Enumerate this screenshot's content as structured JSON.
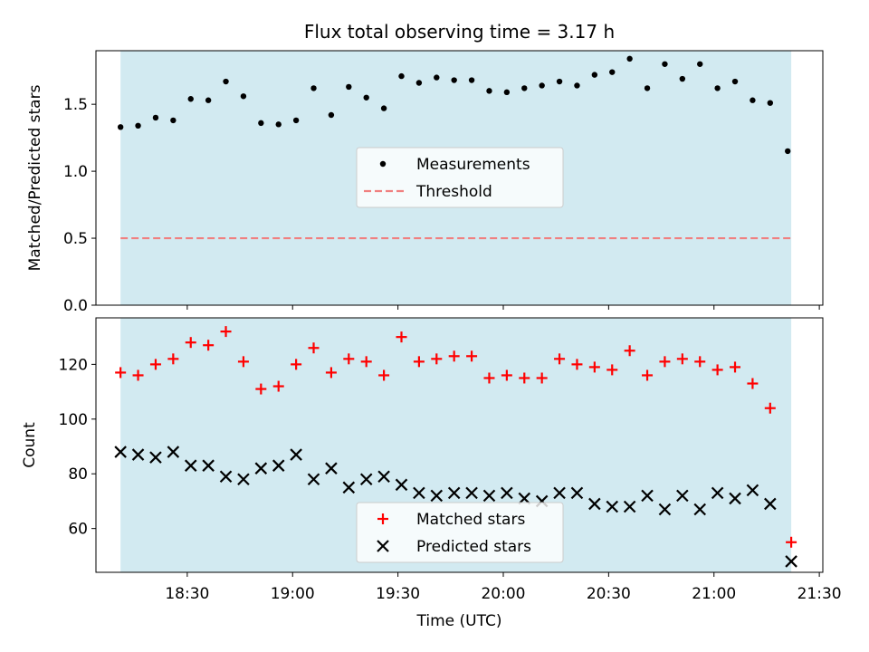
{
  "chart_data": [
    {
      "type": "scatter",
      "title": "Flux total observing time = 3.17 h",
      "xlabel": "",
      "ylabel": "Matched/Predicted stars",
      "ylim": [
        0,
        1.9
      ],
      "yticks": [
        "0.0",
        "0.5",
        "1.0",
        "1.5"
      ],
      "ytick_values": [
        0,
        0.5,
        1.0,
        1.5
      ],
      "shaded_band": {
        "x_start": "18:11",
        "x_end": "21:22",
        "color": "#add8e6"
      },
      "legend": {
        "placement": "center",
        "entries": [
          "Measurements",
          "Threshold"
        ]
      },
      "threshold": {
        "name": "Threshold",
        "value": 0.5,
        "x_start": "18:11",
        "x_end": "21:22",
        "color": "#f08080"
      },
      "series": [
        {
          "name": "Measurements",
          "color": "#000000",
          "x": [
            "18:11",
            "18:16",
            "18:21",
            "18:26",
            "18:31",
            "18:36",
            "18:41",
            "18:46",
            "18:51",
            "18:56",
            "19:01",
            "19:06",
            "19:11",
            "19:16",
            "19:21",
            "19:26",
            "19:31",
            "19:36",
            "19:41",
            "19:46",
            "19:51",
            "19:56",
            "20:01",
            "20:06",
            "20:11",
            "20:16",
            "20:21",
            "20:26",
            "20:31",
            "20:36",
            "20:41",
            "20:46",
            "20:51",
            "20:56",
            "21:01",
            "21:06",
            "21:11",
            "21:16",
            "21:21"
          ],
          "y": [
            1.33,
            1.34,
            1.4,
            1.38,
            1.54,
            1.53,
            1.67,
            1.56,
            1.36,
            1.35,
            1.38,
            1.62,
            1.42,
            1.63,
            1.55,
            1.47,
            1.71,
            1.66,
            1.7,
            1.68,
            1.68,
            1.6,
            1.59,
            1.62,
            1.64,
            1.67,
            1.64,
            1.72,
            1.74,
            1.84,
            1.62,
            1.8,
            1.69,
            1.8,
            1.62,
            1.67,
            1.53,
            1.51,
            1.15
          ]
        }
      ]
    },
    {
      "type": "scatter",
      "title": "",
      "xlabel": "Time (UTC)",
      "ylabel": "Count",
      "ylim": [
        44,
        137
      ],
      "yticks": [
        "60",
        "80",
        "100",
        "120"
      ],
      "ytick_values": [
        60,
        80,
        100,
        120
      ],
      "xlim": [
        "18:04",
        "21:31"
      ],
      "xticks": [
        "18:30",
        "19:00",
        "19:30",
        "20:00",
        "20:30",
        "21:00",
        "21:30"
      ],
      "shaded_band": {
        "x_start": "18:11",
        "x_end": "21:22",
        "color": "#add8e6"
      },
      "legend": {
        "placement": "lower center",
        "entries": [
          "Matched stars",
          "Predicted stars"
        ]
      },
      "series": [
        {
          "name": "Matched stars",
          "marker": "+",
          "color": "#ff0000",
          "x": [
            "18:11",
            "18:16",
            "18:21",
            "18:26",
            "18:31",
            "18:36",
            "18:41",
            "18:46",
            "18:51",
            "18:56",
            "19:01",
            "19:06",
            "19:11",
            "19:16",
            "19:21",
            "19:26",
            "19:31",
            "19:36",
            "19:41",
            "19:46",
            "19:51",
            "19:56",
            "20:01",
            "20:06",
            "20:11",
            "20:16",
            "20:21",
            "20:26",
            "20:31",
            "20:36",
            "20:41",
            "20:46",
            "20:51",
            "20:56",
            "21:01",
            "21:06",
            "21:11",
            "21:16",
            "21:22"
          ],
          "y": [
            117,
            116,
            120,
            122,
            128,
            127,
            132,
            121,
            111,
            112,
            120,
            126,
            117,
            122,
            121,
            116,
            130,
            121,
            122,
            123,
            123,
            115,
            116,
            115,
            115,
            122,
            120,
            119,
            118,
            125,
            116,
            121,
            122,
            121,
            118,
            119,
            113,
            104,
            55
          ]
        },
        {
          "name": "Predicted stars",
          "marker": "x",
          "color": "#000000",
          "x": [
            "18:11",
            "18:16",
            "18:21",
            "18:26",
            "18:31",
            "18:36",
            "18:41",
            "18:46",
            "18:51",
            "18:56",
            "19:01",
            "19:06",
            "19:11",
            "19:16",
            "19:21",
            "19:26",
            "19:31",
            "19:36",
            "19:41",
            "19:46",
            "19:51",
            "19:56",
            "20:01",
            "20:06",
            "20:11",
            "20:16",
            "20:21",
            "20:26",
            "20:31",
            "20:36",
            "20:41",
            "20:46",
            "20:51",
            "20:56",
            "21:01",
            "21:06",
            "21:11",
            "21:16",
            "21:22"
          ],
          "y": [
            88,
            87,
            86,
            88,
            83,
            83,
            79,
            78,
            82,
            83,
            87,
            78,
            82,
            75,
            78,
            79,
            76,
            73,
            72,
            73,
            73,
            72,
            73,
            71,
            70,
            73,
            73,
            69,
            68,
            68,
            72,
            67,
            72,
            67,
            73,
            71,
            74,
            69,
            48
          ]
        }
      ]
    }
  ]
}
